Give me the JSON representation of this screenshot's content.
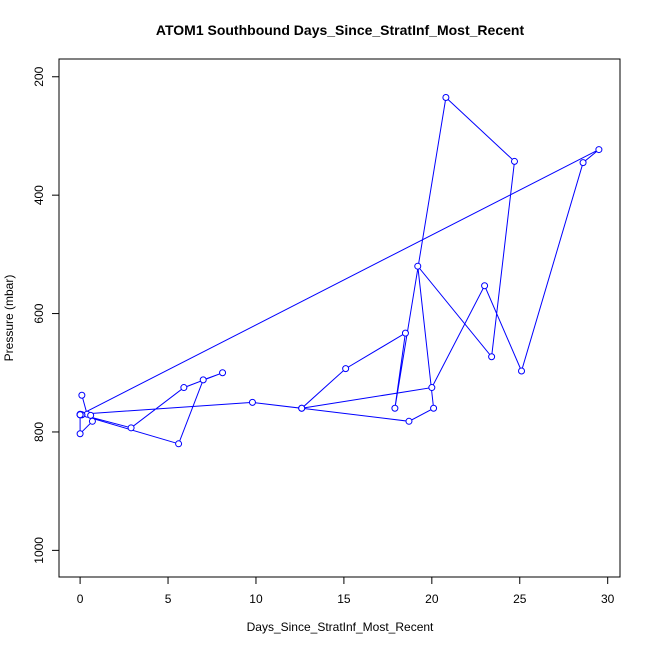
{
  "chart_data": {
    "type": "scatter",
    "title": "ATOM1 Southbound Days_Since_StratInf_Most_Recent",
    "xlabel": "Days_Since_StratInf_Most_Recent",
    "ylabel": "Pressure (mbar)",
    "xlim": [
      -1.2,
      30.7
    ],
    "ylim": [
      1045,
      170
    ],
    "y_reversed": true,
    "x_ticks": [
      0,
      5,
      10,
      15,
      20,
      25,
      30
    ],
    "y_ticks": [
      200,
      400,
      600,
      800,
      1000
    ],
    "grid": false,
    "legend": "none",
    "colors": {
      "series": "#0000ff",
      "axis": "#000000",
      "background": "#ffffff"
    },
    "series": [
      {
        "x": [
          0.1,
          0.4,
          0.6,
          0.7,
          0.0,
          0.0,
          5.6,
          7.0,
          8.1,
          5.9,
          2.9,
          0.1,
          0.1,
          0.0,
          9.8,
          12.6,
          15.1,
          18.5,
          17.9,
          20.8,
          24.7,
          23.4,
          19.2,
          20.1,
          18.7,
          12.6,
          20.0,
          23.0,
          25.1,
          28.6,
          29.5,
          0.0,
          0.0
        ],
        "y": [
          738,
          770,
          772,
          782,
          803,
          771,
          820,
          712,
          700,
          725,
          793,
          771,
          771,
          770,
          750,
          760,
          693,
          633,
          760,
          235,
          343,
          673,
          520,
          760,
          782,
          760,
          725,
          553,
          697,
          345,
          323,
          771,
          771
        ]
      }
    ]
  }
}
